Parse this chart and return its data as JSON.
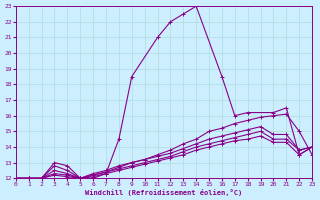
{
  "xlabel": "Windchill (Refroidissement éolien,°C)",
  "xlim": [
    0,
    23
  ],
  "ylim": [
    12,
    23
  ],
  "yticks": [
    12,
    13,
    14,
    15,
    16,
    17,
    18,
    19,
    20,
    21,
    22,
    23
  ],
  "xticks": [
    0,
    1,
    2,
    3,
    4,
    5,
    6,
    7,
    8,
    9,
    10,
    11,
    12,
    13,
    14,
    15,
    16,
    17,
    18,
    19,
    20,
    21,
    22,
    23
  ],
  "bg_color": "#cceeff",
  "grid_color": "#aadddd",
  "line_color": "#880088",
  "line1_x": [
    0,
    1,
    2,
    3,
    4,
    5,
    6,
    7,
    8,
    9,
    11,
    12,
    13,
    14,
    16,
    17,
    18,
    20,
    21,
    22,
    23
  ],
  "line1_y": [
    12,
    12,
    12,
    13,
    12.8,
    12,
    12,
    12.3,
    14.5,
    18.5,
    21,
    22,
    22.5,
    23,
    18.5,
    16,
    16.2,
    16.2,
    16.5,
    13.5,
    14
  ],
  "line2_x": [
    0,
    1,
    2,
    3,
    4,
    5,
    6,
    7,
    8,
    9,
    10,
    11,
    12,
    13,
    14,
    15,
    16,
    17,
    18,
    19,
    20,
    21,
    22,
    23
  ],
  "line2_y": [
    12,
    12,
    12,
    12.8,
    12.5,
    12,
    12.3,
    12.5,
    12.8,
    13,
    13.2,
    13.5,
    13.8,
    14.2,
    14.5,
    15,
    15.2,
    15.5,
    15.7,
    15.9,
    16,
    16.1,
    15,
    13.5
  ],
  "line3_x": [
    0,
    1,
    2,
    3,
    4,
    5,
    6,
    7,
    8,
    9,
    10,
    11,
    12,
    13,
    14,
    15,
    16,
    17,
    18,
    19,
    20,
    21,
    22,
    23
  ],
  "line3_y": [
    12,
    12,
    12,
    12.5,
    12.3,
    12,
    12.2,
    12.4,
    12.7,
    13,
    13.2,
    13.4,
    13.6,
    13.9,
    14.2,
    14.5,
    14.7,
    14.9,
    15.1,
    15.3,
    14.8,
    14.8,
    13.8,
    14
  ],
  "line4_x": [
    0,
    1,
    2,
    3,
    4,
    5,
    6,
    7,
    8,
    9,
    10,
    11,
    12,
    13,
    14,
    15,
    16,
    17,
    18,
    19,
    20,
    21,
    22,
    23
  ],
  "line4_y": [
    12,
    12,
    12,
    12.3,
    12.2,
    12,
    12.2,
    12.4,
    12.6,
    12.8,
    13,
    13.2,
    13.4,
    13.7,
    14,
    14.2,
    14.4,
    14.6,
    14.8,
    15,
    14.5,
    14.5,
    13.8,
    14
  ],
  "line5_x": [
    0,
    1,
    2,
    3,
    4,
    5,
    6,
    7,
    8,
    9,
    10,
    11,
    12,
    13,
    14,
    15,
    16,
    17,
    18,
    19,
    20,
    21,
    22,
    23
  ],
  "line5_y": [
    12,
    12,
    12,
    12.2,
    12.1,
    12,
    12.1,
    12.3,
    12.5,
    12.7,
    12.9,
    13.1,
    13.3,
    13.5,
    13.8,
    14,
    14.2,
    14.4,
    14.5,
    14.7,
    14.3,
    14.3,
    13.5,
    14
  ]
}
